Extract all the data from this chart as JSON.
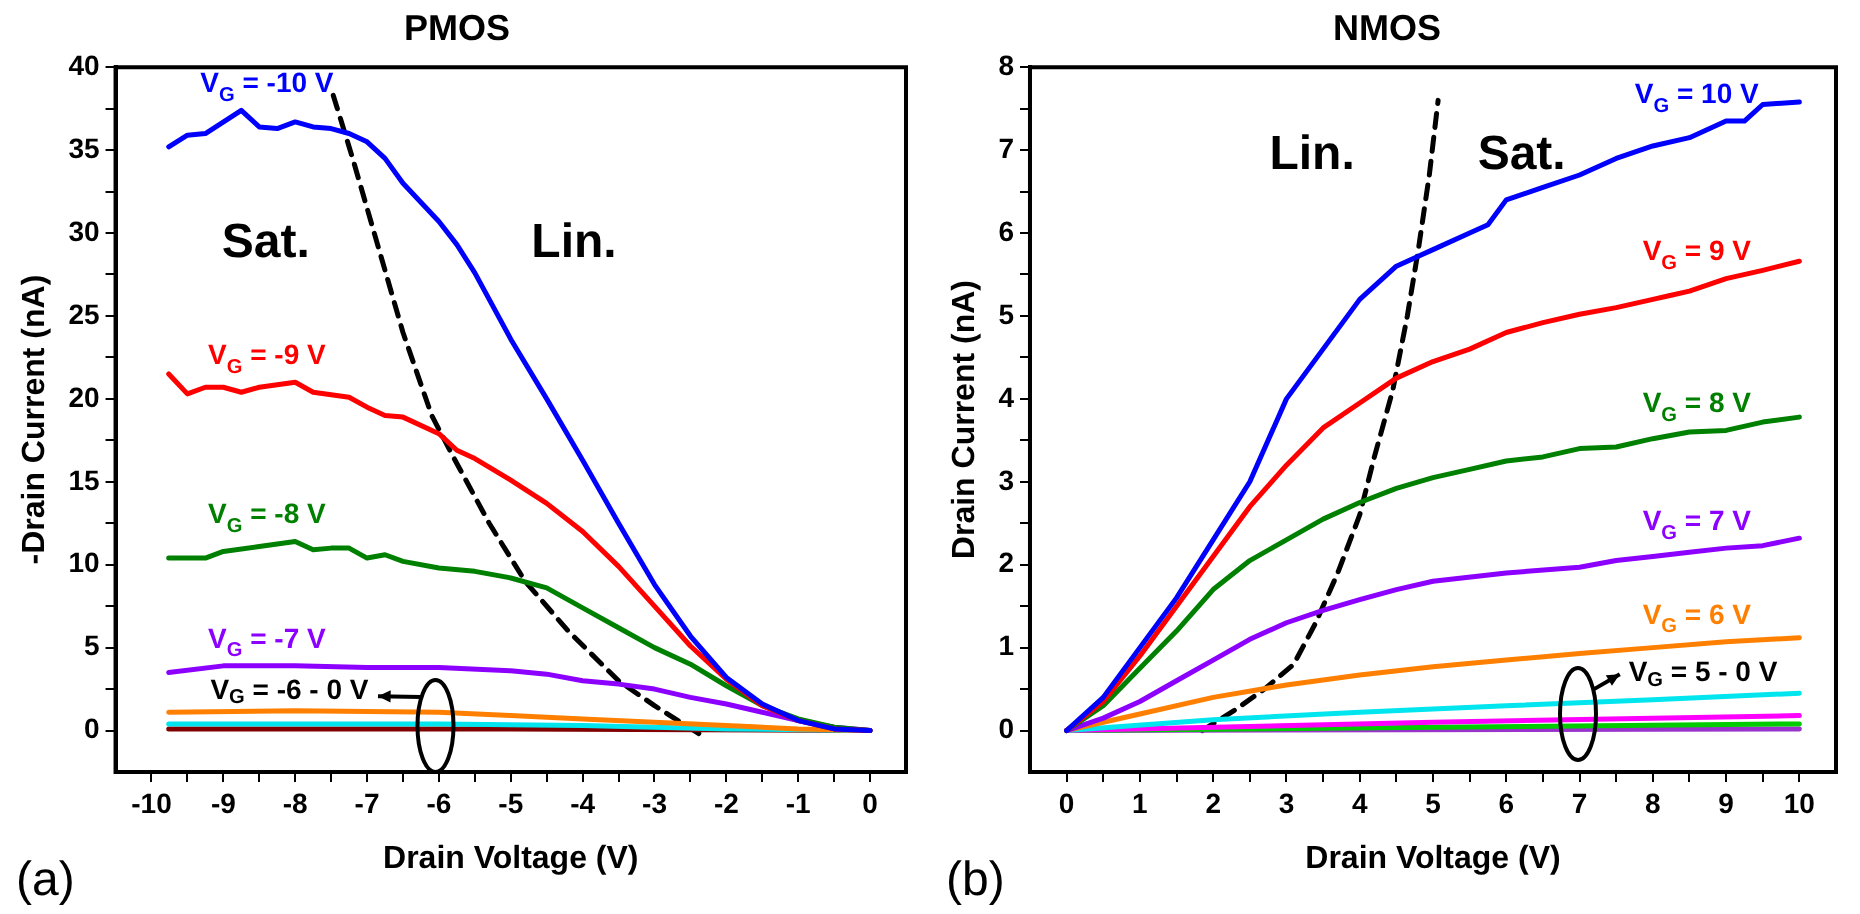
{
  "chart_data": [
    {
      "type": "line",
      "title": "PMOS",
      "xlabel": "Drain Voltage (V)",
      "ylabel": "-Drain Current (nA)",
      "xlim": [
        -10.5,
        0.5
      ],
      "ylim": [
        -2.5,
        40
      ],
      "grid": false,
      "legend": false,
      "marker": "none",
      "line_style": "solid",
      "xticks": [
        -10,
        {
          "value": -9.5,
          "label": null
        },
        -9,
        {
          "value": -8.5,
          "label": null
        },
        -8,
        {
          "value": -7.5,
          "label": null
        },
        -7,
        {
          "value": -6.5,
          "label": null
        },
        -6,
        {
          "value": -5.5,
          "label": null
        },
        -5,
        {
          "value": -4.5,
          "label": null
        },
        -4,
        {
          "value": -3.5,
          "label": null
        },
        -3,
        {
          "value": -2.5,
          "label": null
        },
        -2,
        {
          "value": -1.5,
          "label": null
        },
        -1,
        {
          "value": -0.5,
          "label": null
        },
        0
      ],
      "yticks": [
        0,
        {
          "value": 2.5,
          "label": null
        },
        5,
        {
          "value": 7.5,
          "label": null
        },
        10,
        {
          "value": 12.5,
          "label": null
        },
        15,
        {
          "value": 17.5,
          "label": null
        },
        20,
        {
          "value": 22.5,
          "label": null
        },
        25,
        {
          "value": 27.5,
          "label": null
        },
        30,
        {
          "value": 32.5,
          "label": null
        },
        35,
        {
          "value": 37.5,
          "label": null
        },
        40
      ],
      "series": [
        {
          "name": "V$_{G}$ = -10 V",
          "color": "#0000ff",
          "x": [
            -9.76,
            -9.5,
            -9.25,
            -8.75,
            -8.5,
            -8.25,
            -8,
            -7.75,
            -7.5,
            -7.25,
            -7,
            -6.75,
            -6.5,
            -6,
            -5.75,
            -5.5,
            -5,
            -4.5,
            -4,
            -3.5,
            -3,
            -2.5,
            -2,
            -1.5,
            -1,
            -0.5,
            0
          ],
          "values": [
            35.2,
            35.9,
            36.0,
            37.4,
            36.4,
            36.3,
            36.7,
            36.4,
            36.3,
            36.0,
            35.5,
            34.5,
            33.0,
            30.7,
            29.3,
            27.6,
            23.6,
            20.0,
            16.3,
            12.5,
            8.8,
            5.7,
            3.2,
            1.6,
            0.6,
            0.1,
            0
          ]
        },
        {
          "name": "V$_{G}$ = -9 V",
          "color": "#ff0000",
          "x": [
            -9.76,
            -9.5,
            -9.25,
            -9,
            -8.75,
            -8.5,
            -8,
            -7.75,
            -7.25,
            -7,
            -6.75,
            -6.5,
            -6,
            -5.75,
            -5.5,
            -5,
            -4.5,
            -4,
            -3.5,
            -3,
            -2.5,
            -2,
            -1.5,
            -1,
            -0.5,
            0
          ],
          "values": [
            21.5,
            20.3,
            20.7,
            20.7,
            20.4,
            20.7,
            21.0,
            20.4,
            20.1,
            19.5,
            19.0,
            18.9,
            17.9,
            16.9,
            16.4,
            15.1,
            13.7,
            12.0,
            9.9,
            7.5,
            5.1,
            3.1,
            1.5,
            0.6,
            0.1,
            0
          ]
        },
        {
          "name": "V$_{G}$ = -8 V",
          "color": "#008000",
          "x": [
            -9.76,
            -9.25,
            -9,
            -8.5,
            -8,
            -7.75,
            -7.5,
            -7.25,
            -7,
            -6.75,
            -6.5,
            -6,
            -5.5,
            -5,
            -4.5,
            -4,
            -3.5,
            -3,
            -2.5,
            -2,
            -1.5,
            -1,
            -0.5,
            0
          ],
          "values": [
            10.4,
            10.4,
            10.8,
            11.1,
            11.4,
            10.9,
            11.0,
            11.0,
            10.4,
            10.6,
            10.2,
            9.8,
            9.6,
            9.2,
            8.6,
            7.4,
            6.2,
            5.0,
            4.0,
            2.7,
            1.5,
            0.7,
            0.2,
            0
          ]
        },
        {
          "name": "V$_{G}$ = -7 V",
          "color": "#8b00ff",
          "x": [
            -9.76,
            -9,
            -8,
            -7,
            -6,
            -5,
            -4.5,
            -4,
            -3.5,
            -3,
            -2.5,
            -2,
            -1.5,
            -1,
            -0.5,
            0
          ],
          "values": [
            3.5,
            3.9,
            3.9,
            3.8,
            3.8,
            3.6,
            3.4,
            3.0,
            2.8,
            2.5,
            2.0,
            1.6,
            1.1,
            0.6,
            0.2,
            0
          ]
        },
        {
          "color": "#ff8000",
          "x": [
            -9.76,
            -8,
            -6,
            -5,
            -4,
            -3,
            -2,
            -1,
            0
          ],
          "values": [
            1.1,
            1.2,
            1.1,
            0.9,
            0.7,
            0.5,
            0.3,
            0.1,
            0
          ]
        },
        {
          "color": "#00e5ee",
          "x": [
            -9.76,
            -6,
            -4,
            -2,
            0
          ],
          "values": [
            0.4,
            0.4,
            0.3,
            0.1,
            0
          ]
        },
        {
          "color": "#800000",
          "x": [
            -9.76,
            -5,
            0
          ],
          "values": [
            0.1,
            0.1,
            0
          ]
        },
        {
          "color": "#000000",
          "line_style": "dashed",
          "x": [
            -7.47,
            -7.2,
            -6.9,
            -6.5,
            -6.1,
            -5.8,
            -5.3,
            -4.8,
            -4.2,
            -3.5,
            -3,
            -2.6,
            -2.3
          ],
          "values": [
            38.3,
            34.5,
            30,
            24,
            19,
            16.5,
            12.5,
            9,
            6,
            3,
            1.5,
            0.4,
            -0.4
          ]
        }
      ],
      "annotations": [
        "V$_{G}$ = -6 - 0 V",
        "Sat.",
        "Lin.",
        "(a)"
      ]
    },
    {
      "type": "line",
      "title": "NMOS",
      "xlabel": "Drain Voltage (V)",
      "ylabel": "Drain Current (nA)",
      "xlim": [
        -0.5,
        10.5
      ],
      "ylim": [
        -0.5,
        8
      ],
      "grid": false,
      "legend": false,
      "marker": "none",
      "line_style": "solid",
      "xticks": [
        0,
        {
          "value": 0.5,
          "label": null
        },
        1,
        {
          "value": 1.5,
          "label": null
        },
        2,
        {
          "value": 2.5,
          "label": null
        },
        3,
        {
          "value": 3.5,
          "label": null
        },
        4,
        {
          "value": 4.5,
          "label": null
        },
        5,
        {
          "value": 5.5,
          "label": null
        },
        6,
        {
          "value": 6.5,
          "label": null
        },
        7,
        {
          "value": 7.5,
          "label": null
        },
        8,
        {
          "value": 8.5,
          "label": null
        },
        9,
        {
          "value": 9.5,
          "label": null
        },
        10
      ],
      "yticks": [
        0,
        {
          "value": 0.5,
          "label": null
        },
        1,
        {
          "value": 1.5,
          "label": null
        },
        2,
        {
          "value": 2.5,
          "label": null
        },
        3,
        {
          "value": 3.5,
          "label": null
        },
        4,
        {
          "value": 4.5,
          "label": null
        },
        5,
        {
          "value": 5.5,
          "label": null
        },
        6,
        {
          "value": 6.5,
          "label": null
        },
        7,
        {
          "value": 7.5,
          "label": null
        },
        8
      ],
      "series": [
        {
          "name": "V$_{G}$ = 10 V",
          "color": "#0000ff",
          "x": [
            0,
            0.5,
            1,
            1.5,
            2,
            2.5,
            3,
            3.5,
            4,
            4.5,
            5,
            5.5,
            5.75,
            6,
            6.5,
            7,
            7.5,
            8,
            8.5,
            9,
            9.25,
            9.5,
            10
          ],
          "values": [
            0,
            0.4,
            1.0,
            1.6,
            2.3,
            3.0,
            4.0,
            4.6,
            5.2,
            5.6,
            5.8,
            6.0,
            6.1,
            6.4,
            6.55,
            6.7,
            6.9,
            7.05,
            7.15,
            7.35,
            7.35,
            7.55,
            7.58
          ]
        },
        {
          "name": "V$_{G}$ = 9 V",
          "color": "#ff0000",
          "x": [
            0,
            0.5,
            1,
            1.5,
            2,
            2.5,
            3,
            3.5,
            4,
            4.5,
            5,
            5.5,
            6,
            6.5,
            7,
            7.5,
            8,
            8.25,
            8.5,
            9,
            9.5,
            10
          ],
          "values": [
            0,
            0.35,
            0.9,
            1.5,
            2.1,
            2.7,
            3.2,
            3.65,
            3.95,
            4.25,
            4.45,
            4.6,
            4.8,
            4.92,
            5.02,
            5.1,
            5.2,
            5.25,
            5.3,
            5.45,
            5.55,
            5.66
          ]
        },
        {
          "name": "V$_{G}$ = 8 V",
          "color": "#008000",
          "x": [
            0,
            0.5,
            1,
            1.5,
            2,
            2.5,
            3,
            3.5,
            4,
            4.5,
            5,
            5.5,
            6,
            6.5,
            7,
            7.5,
            8,
            8.5,
            9,
            9.5,
            10
          ],
          "values": [
            0,
            0.3,
            0.75,
            1.2,
            1.7,
            2.05,
            2.3,
            2.55,
            2.75,
            2.92,
            3.05,
            3.15,
            3.25,
            3.3,
            3.4,
            3.42,
            3.52,
            3.6,
            3.62,
            3.72,
            3.78
          ]
        },
        {
          "name": "V$_{G}$ = 7 V",
          "color": "#8b00ff",
          "x": [
            0,
            0.5,
            1,
            1.5,
            2,
            2.5,
            3,
            3.5,
            4,
            4.5,
            5,
            6,
            7,
            7.5,
            8,
            8.5,
            9,
            9.5,
            10
          ],
          "values": [
            0,
            0.15,
            0.35,
            0.6,
            0.85,
            1.1,
            1.3,
            1.45,
            1.58,
            1.7,
            1.8,
            1.9,
            1.97,
            2.05,
            2.1,
            2.15,
            2.2,
            2.23,
            2.32
          ]
        },
        {
          "name": "V$_{G}$ = 6 V",
          "color": "#ff8000",
          "x": [
            0,
            1,
            2,
            3,
            4,
            5,
            6,
            7,
            8,
            9,
            10
          ],
          "values": [
            0,
            0.2,
            0.4,
            0.55,
            0.67,
            0.77,
            0.85,
            0.93,
            1.0,
            1.07,
            1.12
          ]
        },
        {
          "color": "#00e5ee",
          "x": [
            0,
            2,
            4,
            6,
            8,
            10
          ],
          "values": [
            0,
            0.13,
            0.22,
            0.3,
            0.37,
            0.45
          ]
        },
        {
          "color": "#ff00ff",
          "x": [
            0,
            5,
            10
          ],
          "values": [
            0,
            0.1,
            0.18
          ]
        },
        {
          "color": "#00cc00",
          "x": [
            0,
            5,
            10
          ],
          "values": [
            0,
            0.04,
            0.08
          ]
        },
        {
          "color": "#9933cc",
          "x": [
            0,
            10
          ],
          "values": [
            0,
            0.02
          ]
        },
        {
          "color": "#000000",
          "line_style": "dashed",
          "x": [
            1.85,
            2.3,
            2.7,
            3.1,
            3.4,
            3.7,
            4.0,
            4.2,
            4.45,
            4.65,
            4.8,
            4.95,
            5.07
          ],
          "values": [
            0,
            0.25,
            0.5,
            0.8,
            1.3,
            1.9,
            2.6,
            3.3,
            4.1,
            5.0,
            5.8,
            6.7,
            7.6
          ]
        }
      ],
      "annotations": [
        "V$_{G}$ = 5 - 0 V",
        "Lin.",
        "Sat.",
        "(b)"
      ]
    }
  ]
}
